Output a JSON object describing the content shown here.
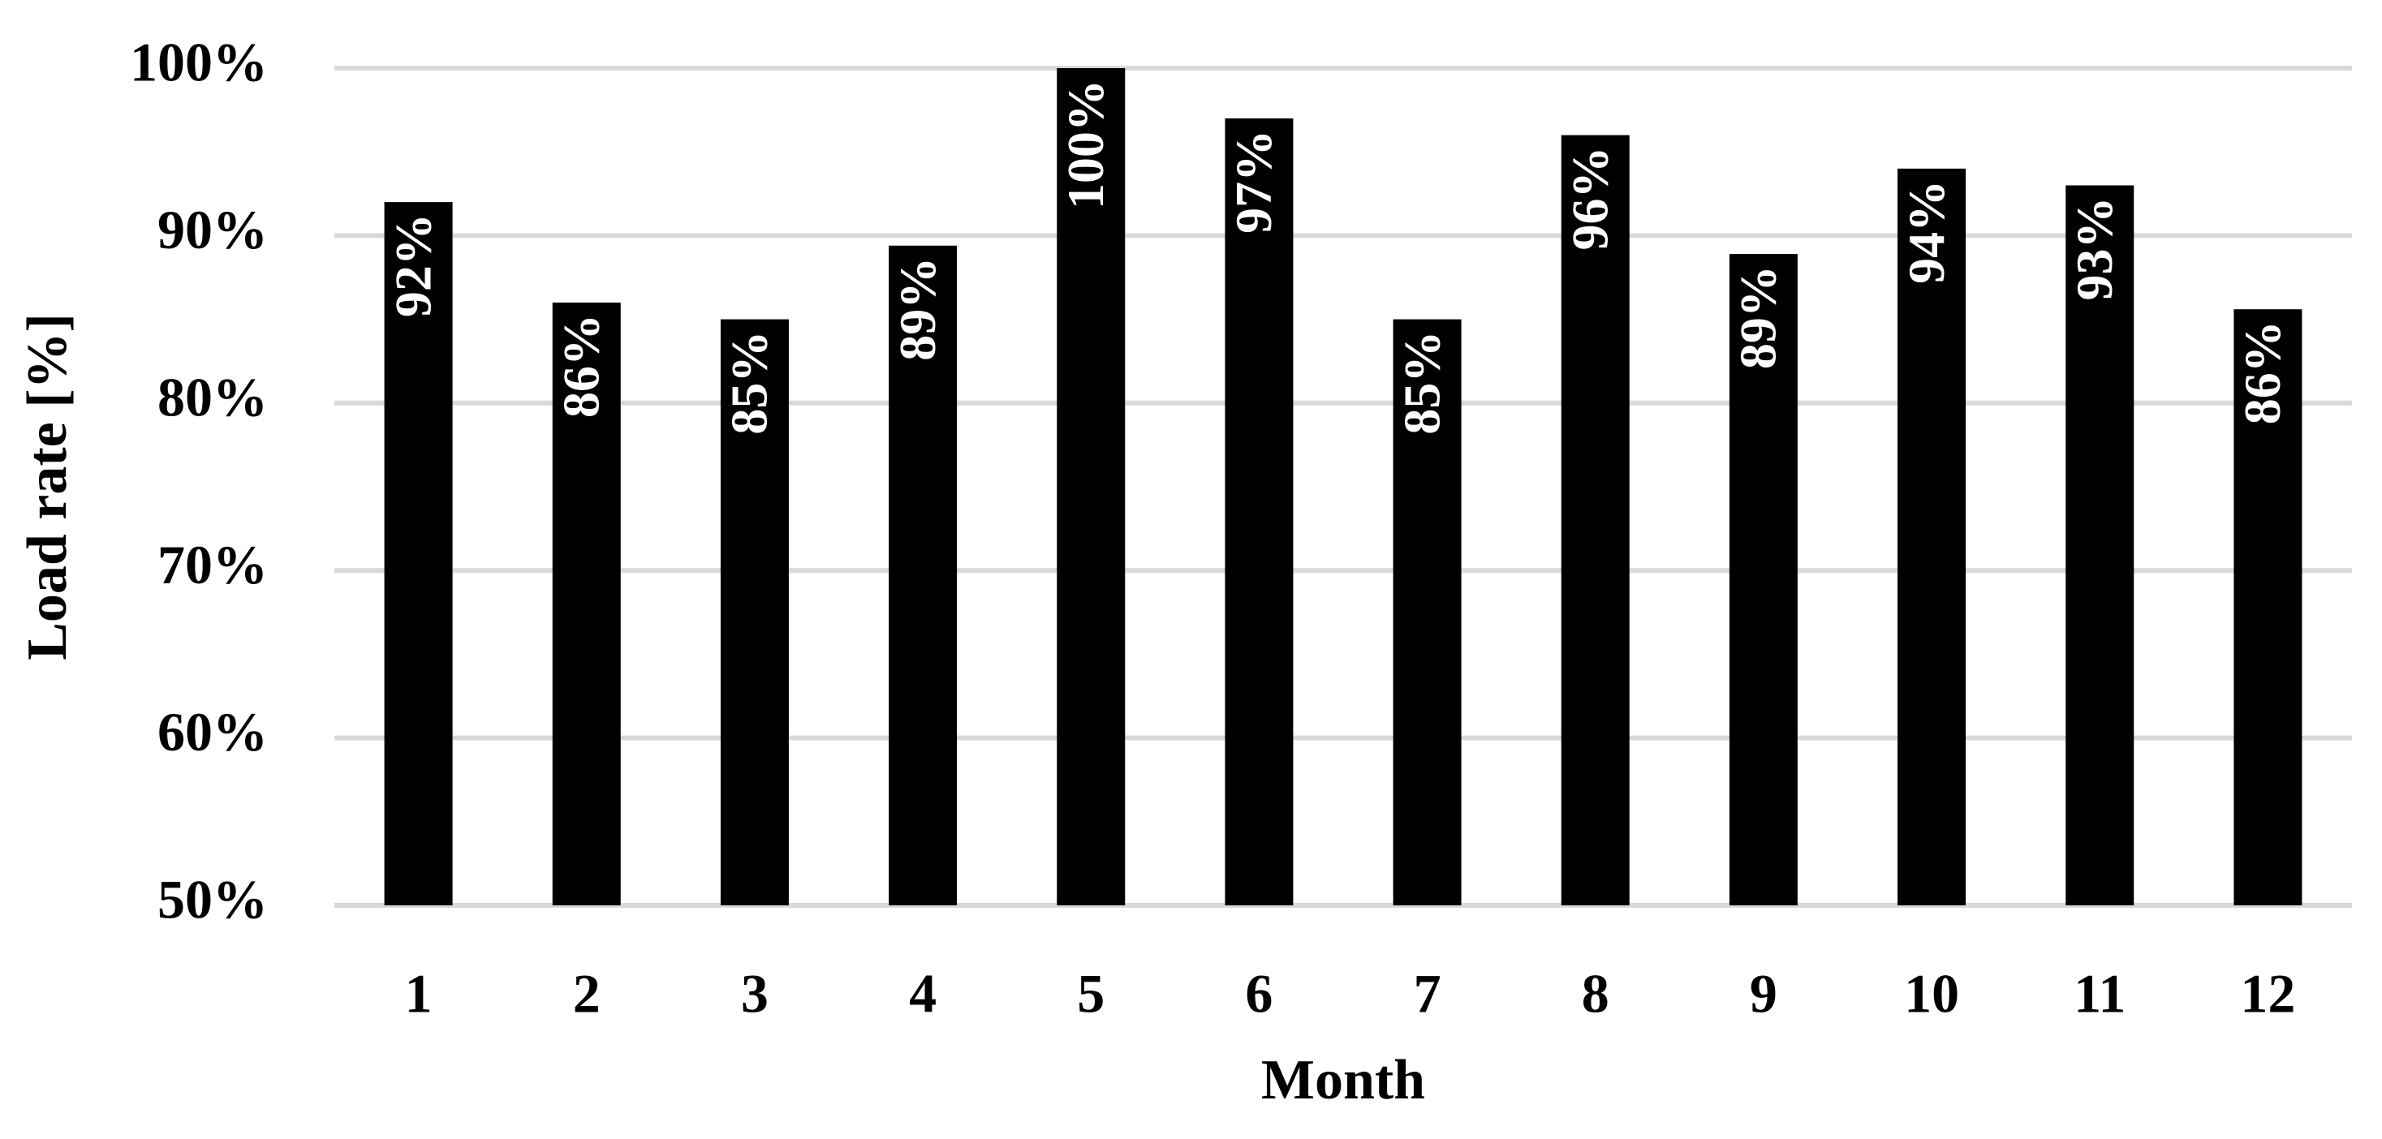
{
  "chart_data": {
    "type": "bar",
    "x_label": "Month",
    "y_label": "Load rate [%]",
    "categories": [
      "1",
      "2",
      "3",
      "4",
      "5",
      "6",
      "7",
      "8",
      "9",
      "10",
      "11",
      "12"
    ],
    "values": [
      92,
      86,
      85,
      89.4,
      100,
      97,
      85,
      96,
      88.9,
      94,
      93,
      85.6
    ],
    "value_labels": [
      "92%",
      "86%",
      "85%",
      "89%",
      "100%",
      "97%",
      "85%",
      "96%",
      "89%",
      "94%",
      "93%",
      "86%"
    ],
    "color": "#000000",
    "ylim": [
      50,
      100
    ],
    "yticks": [
      {
        "value": 50,
        "label": "50%"
      },
      {
        "value": 60,
        "label": "60%"
      },
      {
        "value": 70,
        "label": "70%"
      },
      {
        "value": 80,
        "label": "80%"
      },
      {
        "value": 90,
        "label": "90%"
      },
      {
        "value": 100,
        "label": "100%"
      }
    ],
    "grid": true
  }
}
